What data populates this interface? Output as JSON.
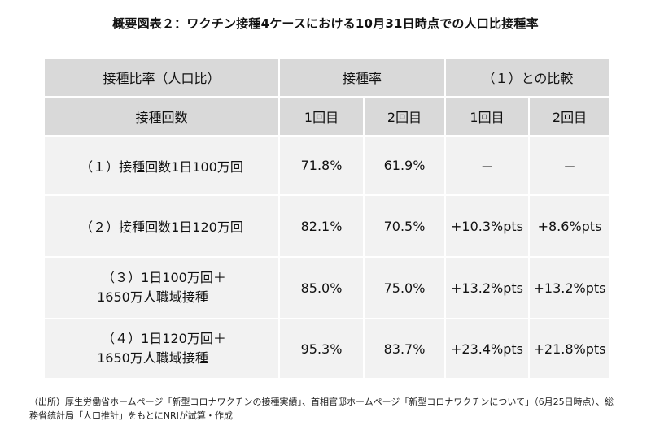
{
  "title": "概要図表２：ワクチン接種4ケースにおける10月31日時点での人口比接種率",
  "table": {
    "header1": {
      "label": "接種比率（人口比）",
      "rate": "接種率",
      "compare": "（１）との比較"
    },
    "header2": {
      "label": "接種回数",
      "rate_dose1": "1回目",
      "rate_dose2": "2回目",
      "cmp_dose1": "1回目",
      "cmp_dose2": "2回目"
    },
    "rows": [
      {
        "label_line1": "（１）接種回数1日100万回",
        "label_line2": "",
        "rate_dose1": "71.8%",
        "rate_dose2": "61.9%",
        "cmp_dose1": "－",
        "cmp_dose2": "－"
      },
      {
        "label_line1": "（２）接種回数1日120万回",
        "label_line2": "",
        "rate_dose1": "82.1%",
        "rate_dose2": "70.5%",
        "cmp_dose1": "+10.3%pts",
        "cmp_dose2": "+8.6%pts"
      },
      {
        "label_line1": "（３）1日100万回＋",
        "label_line2": "1650万人職域接種",
        "rate_dose1": "85.0%",
        "rate_dose2": "75.0%",
        "cmp_dose1": "+13.2%pts",
        "cmp_dose2": "+13.2%pts"
      },
      {
        "label_line1": "（４）1日120万回＋",
        "label_line2": "1650万人職域接種",
        "rate_dose1": "95.3%",
        "rate_dose2": "83.7%",
        "cmp_dose1": "+23.4%pts",
        "cmp_dose2": "+21.8%pts"
      }
    ]
  },
  "source": "（出所）厚生労働省ホームページ「新型コロナワクチンの接種実績」、首相官邸ホームページ「新型コロナワクチンについて」（6月25日時点）、総務省統計局「人口推計」をもとにNRIが試算・作成",
  "colors": {
    "header_bg": "#d9d9d9",
    "body_bg": "#f2f2f2",
    "text": "#111111"
  }
}
